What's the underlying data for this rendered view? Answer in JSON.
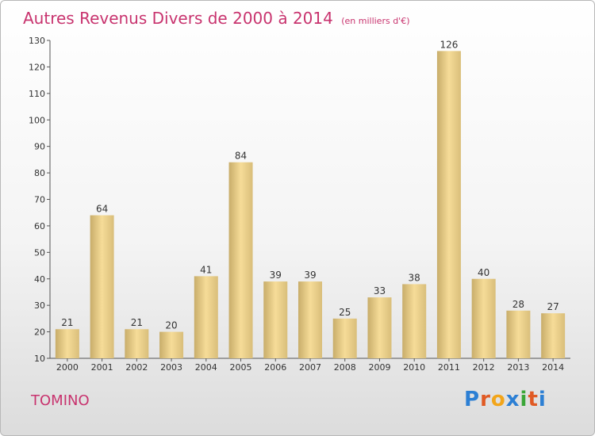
{
  "header": {
    "title": "Autres Revenus Divers de 2000 à 2014",
    "subtitle": "(en milliers d'€)"
  },
  "footer": {
    "commune": "TOMINO",
    "brand": "Proxiti"
  },
  "colors": {
    "title": "#c8336e",
    "bar_light": "#f6dc98",
    "bar_dark": "#c8ad6a",
    "brand_letters": [
      "#2c7fd4",
      "#e05a24",
      "#f2a51a",
      "#2c7fd4",
      "#3aa637",
      "#e05a24",
      "#2c7fd4"
    ]
  },
  "chart_data": {
    "type": "bar",
    "title": "Autres Revenus Divers de 2000 à 2014",
    "subtitle": "(en milliers d'€)",
    "categories": [
      "2000",
      "2001",
      "2002",
      "2003",
      "2004",
      "2005",
      "2006",
      "2007",
      "2008",
      "2009",
      "2010",
      "2011",
      "2012",
      "2013",
      "2014"
    ],
    "values": [
      21,
      64,
      21,
      20,
      41,
      84,
      39,
      39,
      25,
      33,
      38,
      126,
      40,
      28,
      27
    ],
    "ylim": [
      10,
      130
    ],
    "yticks": [
      10,
      20,
      30,
      40,
      50,
      60,
      70,
      80,
      90,
      100,
      110,
      120,
      130
    ],
    "grid": false,
    "data_labels": true
  }
}
